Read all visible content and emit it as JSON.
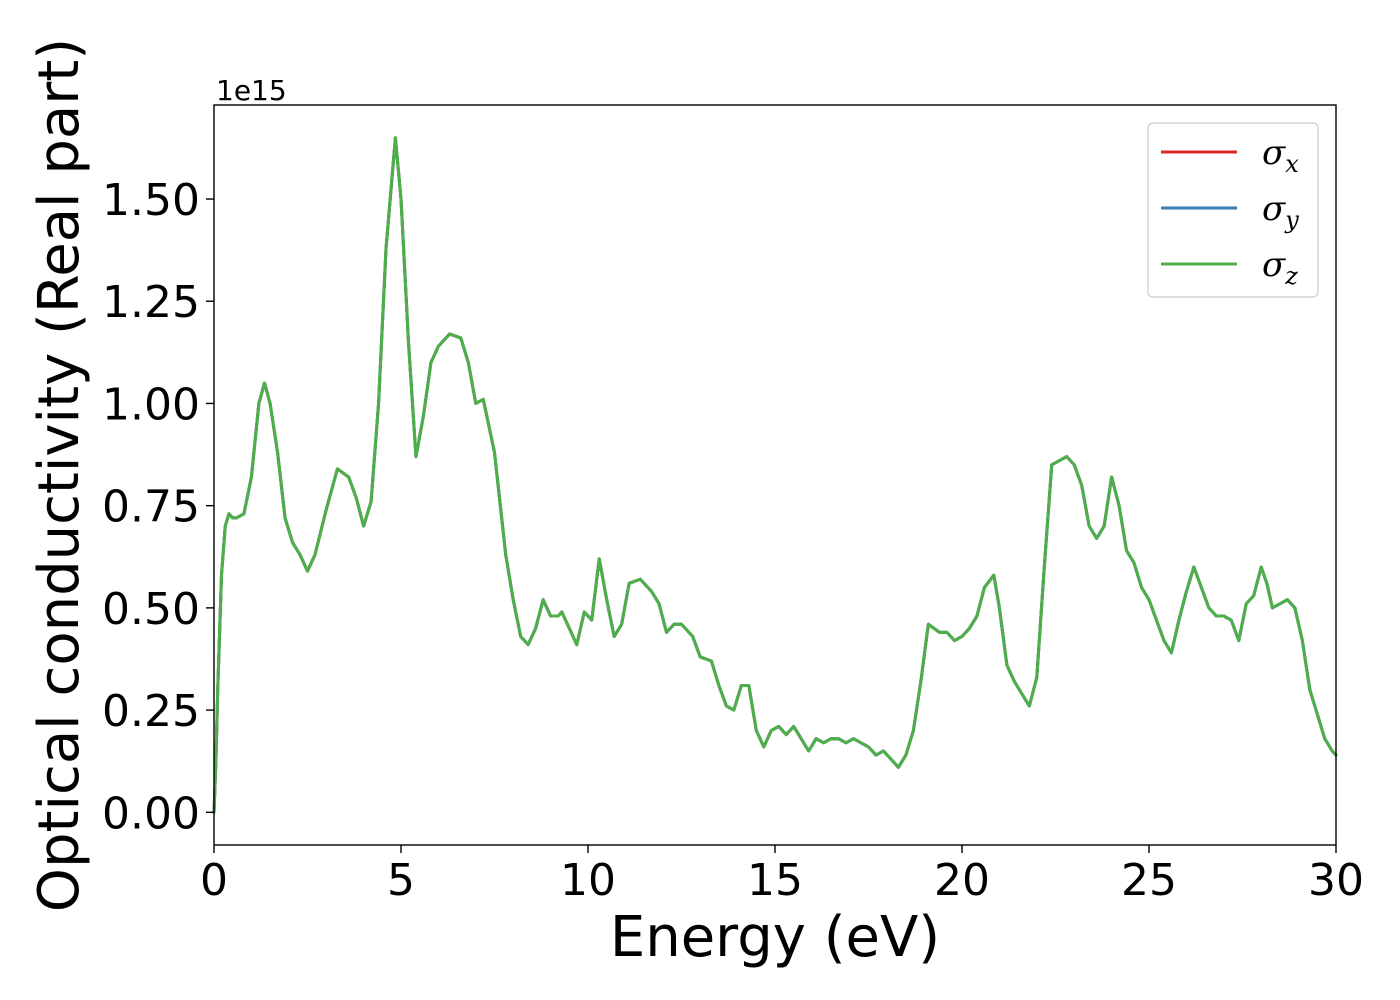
{
  "chart_data": {
    "type": "line",
    "xlabel": "Energy (eV)",
    "ylabel": "Optical conductivity (Real part)",
    "y_offset_label": "1e15",
    "xlim": [
      0,
      30
    ],
    "ylim": [
      -0.08,
      1.73
    ],
    "x_ticks": [
      0,
      5,
      10,
      15,
      20,
      25,
      30
    ],
    "x_tick_labels": [
      "0",
      "5",
      "10",
      "15",
      "20",
      "25",
      "30"
    ],
    "y_ticks": [
      0,
      0.25,
      0.5,
      0.75,
      1.0,
      1.25,
      1.5
    ],
    "y_tick_labels": [
      "0.00",
      "0.25",
      "0.50",
      "0.75",
      "1.00",
      "1.25",
      "1.50"
    ],
    "grid": false,
    "legend_position": "top-right",
    "series": [
      {
        "name": "σx",
        "symbol": "σ",
        "subscript": "x",
        "color": "#d62728"
      },
      {
        "name": "σy",
        "symbol": "σ",
        "subscript": "y",
        "color": "#377eb8"
      },
      {
        "name": "σz",
        "symbol": "σ",
        "subscript": "z",
        "color": "#4daf4a"
      }
    ],
    "x": [
      0,
      0.05,
      0.1,
      0.2,
      0.3,
      0.4,
      0.5,
      0.6,
      0.8,
      1.0,
      1.2,
      1.35,
      1.5,
      1.7,
      1.9,
      2.1,
      2.3,
      2.5,
      2.7,
      3.0,
      3.3,
      3.6,
      3.8,
      4.0,
      4.2,
      4.4,
      4.6,
      4.85,
      5.0,
      5.2,
      5.4,
      5.6,
      5.8,
      6.0,
      6.3,
      6.6,
      6.8,
      7.0,
      7.2,
      7.5,
      7.8,
      8.0,
      8.2,
      8.4,
      8.6,
      8.8,
      9.0,
      9.2,
      9.3,
      9.5,
      9.7,
      9.9,
      10.1,
      10.3,
      10.5,
      10.7,
      10.9,
      11.1,
      11.4,
      11.7,
      11.9,
      12.1,
      12.3,
      12.5,
      12.8,
      13.0,
      13.3,
      13.5,
      13.7,
      13.9,
      14.1,
      14.3,
      14.5,
      14.7,
      14.9,
      15.1,
      15.3,
      15.5,
      15.7,
      15.9,
      16.1,
      16.3,
      16.5,
      16.7,
      16.9,
      17.1,
      17.3,
      17.5,
      17.7,
      17.9,
      18.1,
      18.3,
      18.5,
      18.7,
      18.9,
      19.1,
      19.4,
      19.6,
      19.8,
      20.0,
      20.2,
      20.4,
      20.6,
      20.85,
      21.0,
      21.2,
      21.4,
      21.6,
      21.8,
      22.0,
      22.2,
      22.4,
      22.6,
      22.8,
      23.0,
      23.2,
      23.4,
      23.6,
      23.8,
      24.0,
      24.2,
      24.4,
      24.6,
      24.8,
      25.0,
      25.2,
      25.4,
      25.6,
      25.8,
      26.0,
      26.2,
      26.4,
      26.6,
      26.8,
      27.0,
      27.2,
      27.4,
      27.6,
      27.8,
      28.0,
      28.15,
      28.3,
      28.5,
      28.7,
      28.9,
      29.1,
      29.3,
      29.5,
      29.7,
      29.9,
      30.0
    ],
    "y": [
      0.0,
      0.12,
      0.3,
      0.58,
      0.7,
      0.73,
      0.72,
      0.72,
      0.73,
      0.82,
      1.0,
      1.05,
      1.0,
      0.88,
      0.72,
      0.66,
      0.63,
      0.59,
      0.63,
      0.74,
      0.84,
      0.82,
      0.77,
      0.7,
      0.76,
      1.0,
      1.38,
      1.65,
      1.5,
      1.15,
      0.87,
      0.97,
      1.1,
      1.14,
      1.17,
      1.16,
      1.1,
      1.0,
      1.01,
      0.88,
      0.63,
      0.52,
      0.43,
      0.41,
      0.45,
      0.52,
      0.48,
      0.48,
      0.49,
      0.45,
      0.41,
      0.49,
      0.47,
      0.62,
      0.52,
      0.43,
      0.46,
      0.56,
      0.57,
      0.54,
      0.51,
      0.44,
      0.46,
      0.46,
      0.43,
      0.38,
      0.37,
      0.31,
      0.26,
      0.25,
      0.31,
      0.31,
      0.2,
      0.16,
      0.2,
      0.21,
      0.19,
      0.21,
      0.18,
      0.15,
      0.18,
      0.17,
      0.18,
      0.18,
      0.17,
      0.18,
      0.17,
      0.16,
      0.14,
      0.15,
      0.13,
      0.11,
      0.14,
      0.2,
      0.32,
      0.46,
      0.44,
      0.44,
      0.42,
      0.43,
      0.45,
      0.48,
      0.55,
      0.58,
      0.5,
      0.36,
      0.32,
      0.29,
      0.26,
      0.33,
      0.6,
      0.85,
      0.86,
      0.87,
      0.85,
      0.8,
      0.7,
      0.67,
      0.7,
      0.82,
      0.75,
      0.64,
      0.61,
      0.55,
      0.52,
      0.47,
      0.42,
      0.39,
      0.47,
      0.54,
      0.6,
      0.55,
      0.5,
      0.48,
      0.48,
      0.47,
      0.42,
      0.51,
      0.53,
      0.6,
      0.56,
      0.5,
      0.51,
      0.52,
      0.5,
      0.42,
      0.3,
      0.24,
      0.18,
      0.15,
      0.14
    ]
  }
}
